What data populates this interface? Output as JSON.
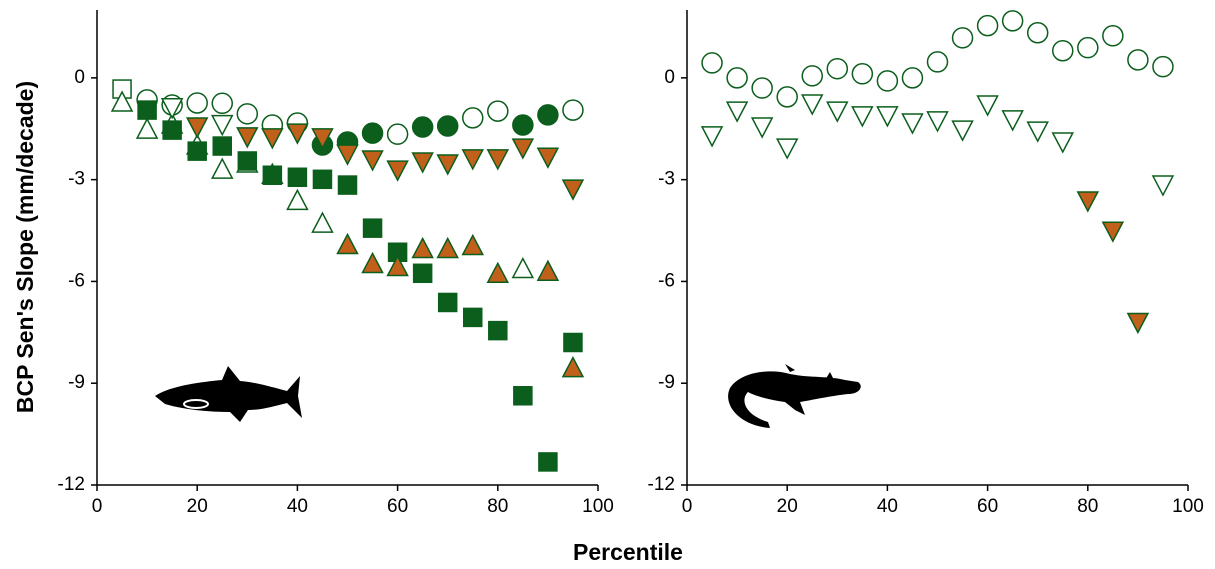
{
  "ylabel": "BCP Sen's Slope (mm/decade)",
  "xlabel": "Percentile",
  "chart_data": [
    {
      "type": "scatter",
      "xlim": [
        0,
        100
      ],
      "ylim": [
        -12,
        2
      ],
      "xticks": [
        0,
        20,
        40,
        60,
        80,
        100
      ],
      "yticks": [
        -12,
        -9,
        -6,
        -3,
        0
      ],
      "series": [
        {
          "marker": "square",
          "filled": false,
          "color": "#0b5e1c",
          "x": [
            5
          ],
          "values": [
            -0.33
          ]
        },
        {
          "marker": "triangle-up",
          "filled": false,
          "color": "#0b5e1c",
          "x": [
            5,
            10,
            15,
            20,
            25,
            30,
            35,
            40,
            45,
            85
          ],
          "values": [
            -0.74,
            -1.54,
            -1.39,
            -2.01,
            -2.72,
            -2.54,
            -2.87,
            -3.64,
            -4.31,
            -5.65
          ]
        },
        {
          "marker": "circle",
          "filled": false,
          "color": "#0b5e1c",
          "x": [
            10,
            15,
            20,
            25,
            30,
            35,
            40,
            60,
            75,
            80,
            95
          ],
          "values": [
            -0.65,
            -0.8,
            -0.74,
            -0.75,
            -1.06,
            -1.39,
            -1.33,
            -1.66,
            -1.18,
            -0.98,
            -0.95
          ]
        },
        {
          "marker": "triangle-down",
          "filled": false,
          "color": "#0b5e1c",
          "x": [
            15,
            25
          ],
          "values": [
            -0.85,
            -1.35
          ]
        },
        {
          "marker": "circle",
          "filled": true,
          "color": "#0b5e1c",
          "x": [
            45,
            50,
            55,
            65,
            70,
            85,
            90
          ],
          "values": [
            -1.98,
            -1.89,
            -1.63,
            -1.45,
            -1.42,
            -1.39,
            -1.09
          ]
        },
        {
          "marker": "triangle-down",
          "filled": true,
          "color": "#c0601a",
          "x": [
            20,
            30,
            35,
            40,
            45,
            50,
            55,
            60,
            65,
            70,
            75,
            80,
            85,
            90,
            95
          ],
          "values": [
            -1.42,
            -1.71,
            -1.74,
            -1.6,
            -1.74,
            -2.22,
            -2.39,
            -2.69,
            -2.45,
            -2.51,
            -2.36,
            -2.36,
            -2.04,
            -2.31,
            -3.25
          ]
        },
        {
          "marker": "square",
          "filled": true,
          "color": "#0b5e1c",
          "x": [
            10,
            15,
            20,
            25,
            30,
            35,
            40,
            45,
            50,
            55,
            60,
            65,
            70,
            75,
            80,
            85,
            90,
            95
          ],
          "values": [
            -0.95,
            -1.54,
            -2.16,
            -2.01,
            -2.45,
            -2.87,
            -2.93,
            -2.99,
            -3.16,
            -4.43,
            -5.14,
            -5.76,
            -6.62,
            -7.06,
            -7.45,
            -9.37,
            -11.32,
            -7.8
          ]
        },
        {
          "marker": "triangle-up",
          "filled": true,
          "color": "#c0601a",
          "x": [
            50,
            55,
            60,
            65,
            70,
            75,
            80,
            90,
            95
          ],
          "values": [
            -4.94,
            -5.5,
            -5.59,
            -5.06,
            -5.06,
            -4.97,
            -5.79,
            -5.73,
            -8.57
          ]
        }
      ]
    },
    {
      "type": "scatter",
      "xlim": [
        0,
        100
      ],
      "ylim": [
        -12,
        2
      ],
      "xticks": [
        0,
        20,
        40,
        60,
        80,
        100
      ],
      "yticks": [
        -12,
        -9,
        -6,
        -3,
        0
      ],
      "series": [
        {
          "marker": "circle",
          "filled": false,
          "color": "#0b5e1c",
          "x": [
            5,
            10,
            15,
            20,
            25,
            30,
            35,
            40,
            45,
            50,
            55,
            60,
            65,
            70,
            75,
            80,
            85,
            90,
            95
          ],
          "values": [
            0.44,
            0,
            -0.3,
            -0.56,
            0.06,
            0.27,
            0.12,
            -0.09,
            0,
            0.47,
            1.18,
            1.54,
            1.68,
            1.33,
            0.8,
            0.89,
            1.24,
            0.53,
            0.33
          ]
        },
        {
          "marker": "triangle-down",
          "filled": false,
          "color": "#0b5e1c",
          "x": [
            5,
            10,
            15,
            20,
            25,
            30,
            35,
            40,
            45,
            50,
            55,
            60,
            65,
            70,
            75,
            95
          ],
          "values": [
            -1.68,
            -0.95,
            -1.42,
            -2.04,
            -0.74,
            -0.95,
            -1.09,
            -1.09,
            -1.3,
            -1.24,
            -1.51,
            -0.77,
            -1.21,
            -1.54,
            -1.86,
            -3.13
          ]
        },
        {
          "marker": "triangle-down",
          "filled": true,
          "color": "#c0601a",
          "x": [
            80,
            85,
            90
          ],
          "values": [
            -3.6,
            -4.49,
            -7.18
          ]
        }
      ]
    }
  ]
}
